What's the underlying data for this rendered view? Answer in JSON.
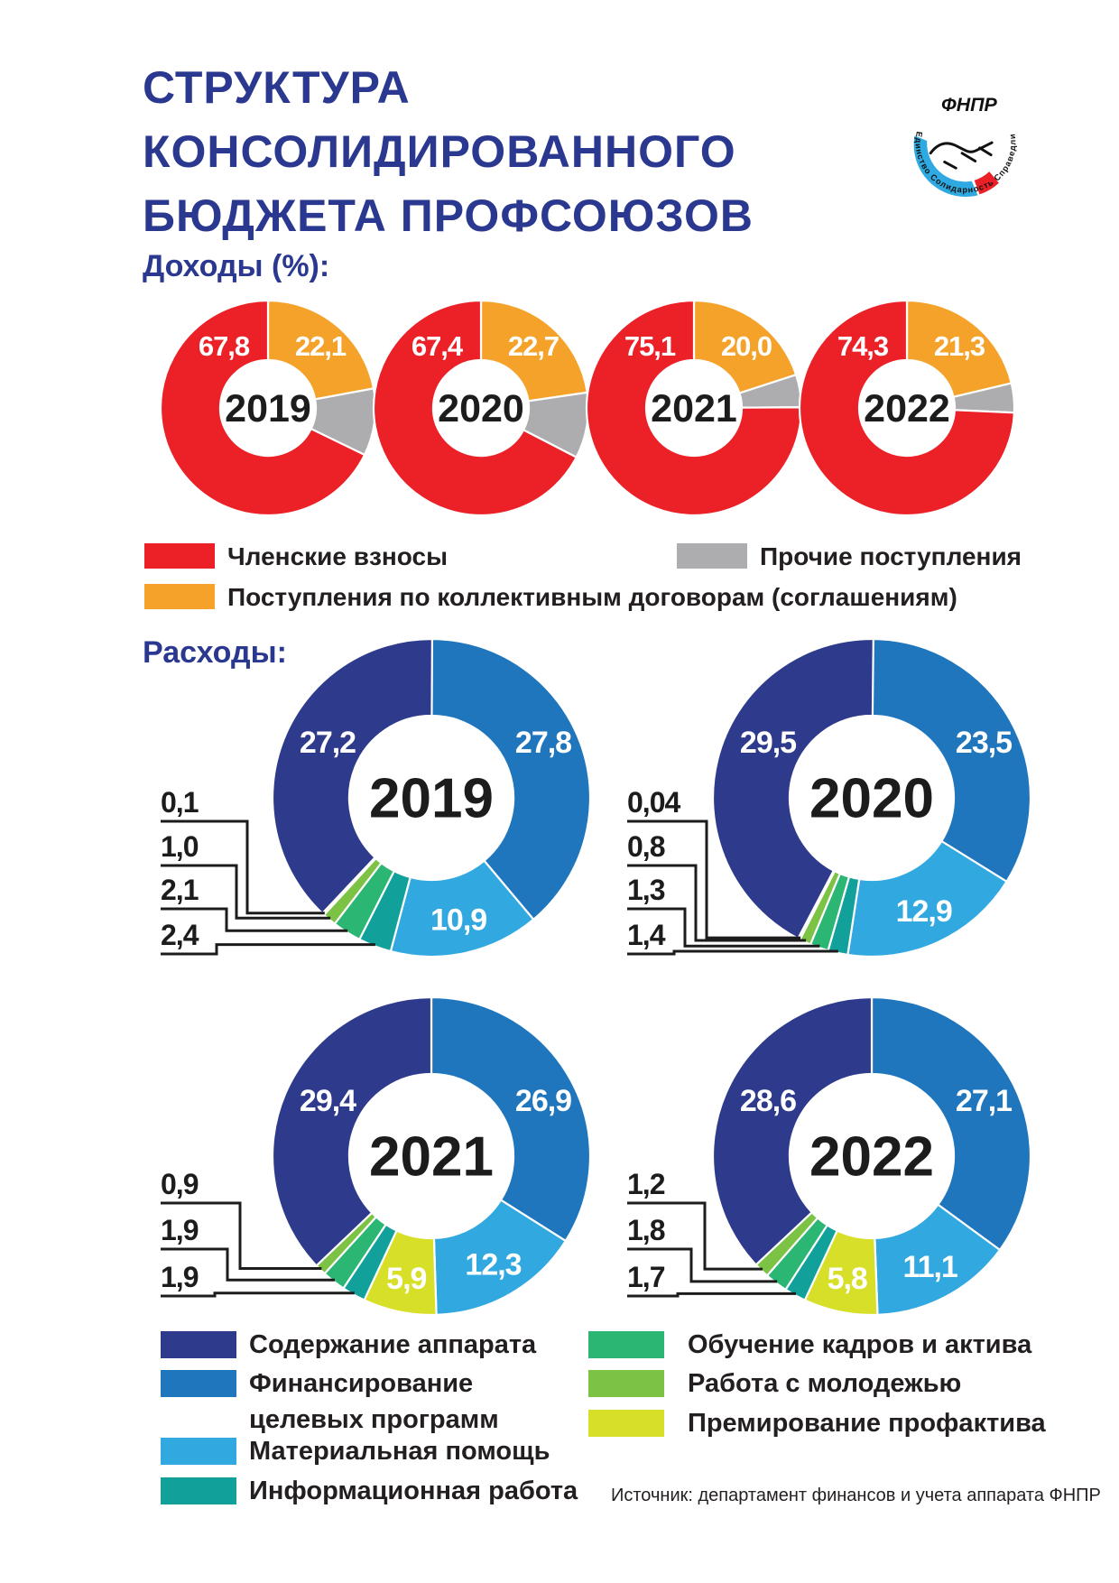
{
  "palette": {
    "red": "#EB2127",
    "orange": "#F5A22B",
    "gray": "#ADADAF",
    "navy": "#2E3A8C",
    "blue": "#1F76BD",
    "cyan": "#31A9E0",
    "teal": "#12A09B",
    "green": "#2BB673",
    "lightgreen": "#7CC244",
    "yellow": "#D8DF28",
    "title_blue": "#2B3890",
    "text_dark": "#1C1C1C",
    "label_white": "#FFFFFF"
  },
  "title": {
    "line1": "СТРУКТУРА",
    "line2": "КОНСОЛИДИРОВАННОГО",
    "line3": "БЮДЖЕТА ПРОФСОЮЗОВ"
  },
  "logo": {
    "name": "ФНПР",
    "ring_text": "Единство  Солидарность  Справедливость"
  },
  "sections": {
    "income_heading": "Доходы (%):",
    "expense_heading": "Расходы:"
  },
  "legends": {
    "income": [
      {
        "key": "red",
        "label": "Членские взносы"
      },
      {
        "key": "gray",
        "label": "Прочие поступления"
      },
      {
        "key": "orange",
        "label": "Поступления по коллективным договорам (соглашениям)"
      }
    ],
    "expense": [
      {
        "key": "navy",
        "label": "Содержание аппарата"
      },
      {
        "key": "blue",
        "label": "Финансирование",
        "label2": "целевых программ"
      },
      {
        "key": "cyan",
        "label": "Материальная помощь"
      },
      {
        "key": "teal",
        "label": "Информационная работа"
      },
      {
        "key": "green",
        "label": "Обучение кадров и актива"
      },
      {
        "key": "lightgreen",
        "label": "Работа с молодежью"
      },
      {
        "key": "yellow",
        "label": "Премирование профактива"
      }
    ]
  },
  "source": "Источник: департамент финансов и учета аппарата ФНПР",
  "chart_data": [
    {
      "id": "income",
      "type": "pie",
      "subtype": "donut-row",
      "title": "Доходы (%):",
      "unit": "%",
      "note": "slices listed clockwise from 12 o'clock; unlabeled gray values estimated as remainder to 100%",
      "years": [
        {
          "year": "2019",
          "slices": [
            {
              "category": "Поступления по коллективным договорам (соглашениям)",
              "color": "orange",
              "value": 22.1,
              "label": "22,1",
              "label_pos": "side-right"
            },
            {
              "category": "Прочие поступления",
              "color": "gray",
              "value": 10.1,
              "label": "",
              "label_pos": "none"
            },
            {
              "category": "Членские взносы",
              "color": "red",
              "value": 67.8,
              "label": "67,8",
              "label_pos": "side-left"
            }
          ]
        },
        {
          "year": "2020",
          "slices": [
            {
              "category": "Поступления по коллективным договорам (соглашениям)",
              "color": "orange",
              "value": 22.7,
              "label": "22,7",
              "label_pos": "side-right"
            },
            {
              "category": "Прочие поступления",
              "color": "gray",
              "value": 9.9,
              "label": "",
              "label_pos": "none"
            },
            {
              "category": "Членские взносы",
              "color": "red",
              "value": 67.4,
              "label": "67,4",
              "label_pos": "side-left"
            }
          ]
        },
        {
          "year": "2021",
          "slices": [
            {
              "category": "Поступления по коллективным договорам (соглашениям)",
              "color": "orange",
              "value": 20.0,
              "label": "20,0",
              "label_pos": "side-right"
            },
            {
              "category": "Прочие поступления",
              "color": "gray",
              "value": 4.9,
              "label": "",
              "label_pos": "none"
            },
            {
              "category": "Членские взносы",
              "color": "red",
              "value": 75.1,
              "label": "75,1",
              "label_pos": "side-left"
            }
          ]
        },
        {
          "year": "2022",
          "slices": [
            {
              "category": "Поступления по коллективным договорам (соглашениям)",
              "color": "orange",
              "value": 21.3,
              "label": "21,3",
              "label_pos": "side-right"
            },
            {
              "category": "Прочие поступления",
              "color": "gray",
              "value": 4.4,
              "label": "",
              "label_pos": "none"
            },
            {
              "category": "Членские взносы",
              "color": "red",
              "value": 74.3,
              "label": "74,3",
              "label_pos": "side-left"
            }
          ]
        }
      ]
    },
    {
      "id": "expense",
      "type": "pie",
      "subtype": "donut-grid",
      "title": "Расходы:",
      "note": "slices listed clockwise from 12 o'clock; callout values shown outside with leader lines",
      "years": [
        {
          "year": "2019",
          "slices": [
            {
              "category": "Финансирование целевых программ",
              "color": "blue",
              "value": 27.8,
              "label": "27,8",
              "label_pos": "side-right"
            },
            {
              "category": "Материальная помощь",
              "color": "cyan",
              "value": 10.9,
              "label": "10,9",
              "label_pos": "mid"
            },
            {
              "category": "Информационная работа",
              "color": "teal",
              "value": 2.4,
              "label": "2,4",
              "label_pos": "callout"
            },
            {
              "category": "Обучение кадров и актива",
              "color": "green",
              "value": 2.1,
              "label": "2,1",
              "label_pos": "callout"
            },
            {
              "category": "Работа с молодежью",
              "color": "lightgreen",
              "value": 1.0,
              "label": "1,0",
              "label_pos": "callout"
            },
            {
              "category": "Премирование профактива",
              "color": "yellow",
              "value": 0.1,
              "label": "0,1",
              "label_pos": "callout"
            },
            {
              "category": "Содержание аппарата",
              "color": "navy",
              "value": 27.2,
              "label": "27,2",
              "label_pos": "side-left"
            }
          ]
        },
        {
          "year": "2020",
          "slices": [
            {
              "category": "Финансирование целевых программ",
              "color": "blue",
              "value": 23.5,
              "label": "23,5",
              "label_pos": "side-right"
            },
            {
              "category": "Материальная помощь",
              "color": "cyan",
              "value": 12.9,
              "label": "12,9",
              "label_pos": "mid"
            },
            {
              "category": "Информационная работа",
              "color": "teal",
              "value": 1.4,
              "label": "1,4",
              "label_pos": "callout"
            },
            {
              "category": "Обучение кадров и актива",
              "color": "green",
              "value": 1.3,
              "label": "1,3",
              "label_pos": "callout"
            },
            {
              "category": "Работа с молодежью",
              "color": "lightgreen",
              "value": 0.8,
              "label": "0,8",
              "label_pos": "callout"
            },
            {
              "category": "Премирование профактива",
              "color": "yellow",
              "value": 0.04,
              "label": "0,04",
              "label_pos": "callout"
            },
            {
              "category": "Содержание аппарата",
              "color": "navy",
              "value": 29.5,
              "label": "29,5",
              "label_pos": "side-left"
            }
          ]
        },
        {
          "year": "2021",
          "slices": [
            {
              "category": "Финансирование целевых программ",
              "color": "blue",
              "value": 26.9,
              "label": "26,9",
              "label_pos": "side-right"
            },
            {
              "category": "Материальная помощь",
              "color": "cyan",
              "value": 12.3,
              "label": "12,3",
              "label_pos": "mid"
            },
            {
              "category": "Премирование профактива",
              "color": "yellow",
              "value": 5.9,
              "label": "5,9",
              "label_pos": "mid"
            },
            {
              "category": "Информационная работа",
              "color": "teal",
              "value": 1.9,
              "label": "1,9",
              "label_pos": "callout"
            },
            {
              "category": "Обучение кадров и актива",
              "color": "green",
              "value": 1.9,
              "label": "1,9",
              "label_pos": "callout"
            },
            {
              "category": "Работа с молодежью",
              "color": "lightgreen",
              "value": 0.9,
              "label": "0,9",
              "label_pos": "callout"
            },
            {
              "category": "Содержание аппарата",
              "color": "navy",
              "value": 29.4,
              "label": "29,4",
              "label_pos": "side-left"
            }
          ]
        },
        {
          "year": "2022",
          "slices": [
            {
              "category": "Финансирование целевых программ",
              "color": "blue",
              "value": 27.1,
              "label": "27,1",
              "label_pos": "side-right"
            },
            {
              "category": "Материальная помощь",
              "color": "cyan",
              "value": 11.1,
              "label": "11,1",
              "label_pos": "mid"
            },
            {
              "category": "Премирование профактива",
              "color": "yellow",
              "value": 5.8,
              "label": "5,8",
              "label_pos": "mid"
            },
            {
              "category": "Информационная работа",
              "color": "teal",
              "value": 1.7,
              "label": "1,7",
              "label_pos": "callout"
            },
            {
              "category": "Обучение кадров и актива",
              "color": "green",
              "value": 1.8,
              "label": "1,8",
              "label_pos": "callout"
            },
            {
              "category": "Работа с молодежью",
              "color": "lightgreen",
              "value": 1.2,
              "label": "1,2",
              "label_pos": "callout"
            },
            {
              "category": "Содержание аппарата",
              "color": "navy",
              "value": 28.6,
              "label": "28,6",
              "label_pos": "side-left"
            }
          ]
        }
      ]
    }
  ]
}
